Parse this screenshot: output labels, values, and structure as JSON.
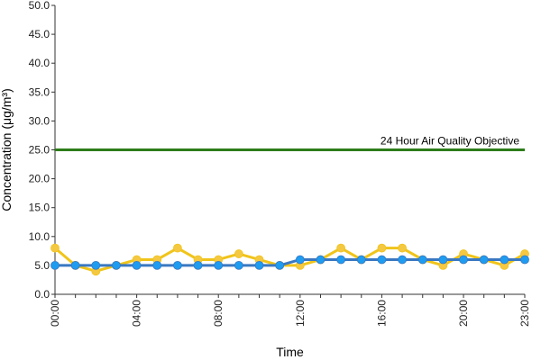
{
  "chart_data": {
    "type": "line",
    "xlabel": "Time",
    "ylabel": "Concentration (μg/m³)",
    "ylim": [
      0,
      50
    ],
    "y_ticks": [
      "0.0",
      "5.0",
      "10.0",
      "15.0",
      "20.0",
      "25.0",
      "30.0",
      "35.0",
      "40.0",
      "45.0",
      "50.0"
    ],
    "x": [
      "00:00",
      "01:00",
      "02:00",
      "03:00",
      "04:00",
      "05:00",
      "06:00",
      "07:00",
      "08:00",
      "09:00",
      "10:00",
      "11:00",
      "12:00",
      "13:00",
      "14:00",
      "15:00",
      "16:00",
      "17:00",
      "18:00",
      "19:00",
      "20:00",
      "21:00",
      "22:00",
      "23:00"
    ],
    "x_tick_labels": [
      "00:00",
      "04:00",
      "08:00",
      "12:00",
      "16:00",
      "20:00",
      "23:00"
    ],
    "x_tick_indices": [
      0,
      4,
      8,
      12,
      16,
      20,
      23
    ],
    "grid": false,
    "legend": "none",
    "series": [
      {
        "color": "#f0c419",
        "marker_color": "#f5c842",
        "values": [
          8,
          5,
          4,
          5,
          6,
          6,
          8,
          6,
          6,
          7,
          6,
          5,
          5,
          6,
          8,
          6,
          8,
          8,
          6,
          5,
          7,
          6,
          5,
          7
        ]
      },
      {
        "color": "#3a78c2",
        "marker_color": "#1e9cf0",
        "values": [
          5,
          5,
          5,
          5,
          5,
          5,
          5,
          5,
          5,
          5,
          5,
          5,
          6,
          6,
          6,
          6,
          6,
          6,
          6,
          6,
          6,
          6,
          6,
          6
        ]
      }
    ],
    "reference_line": {
      "label": "24 Hour Air Quality Objective",
      "value": 25,
      "color": "#2d7d1a"
    }
  }
}
